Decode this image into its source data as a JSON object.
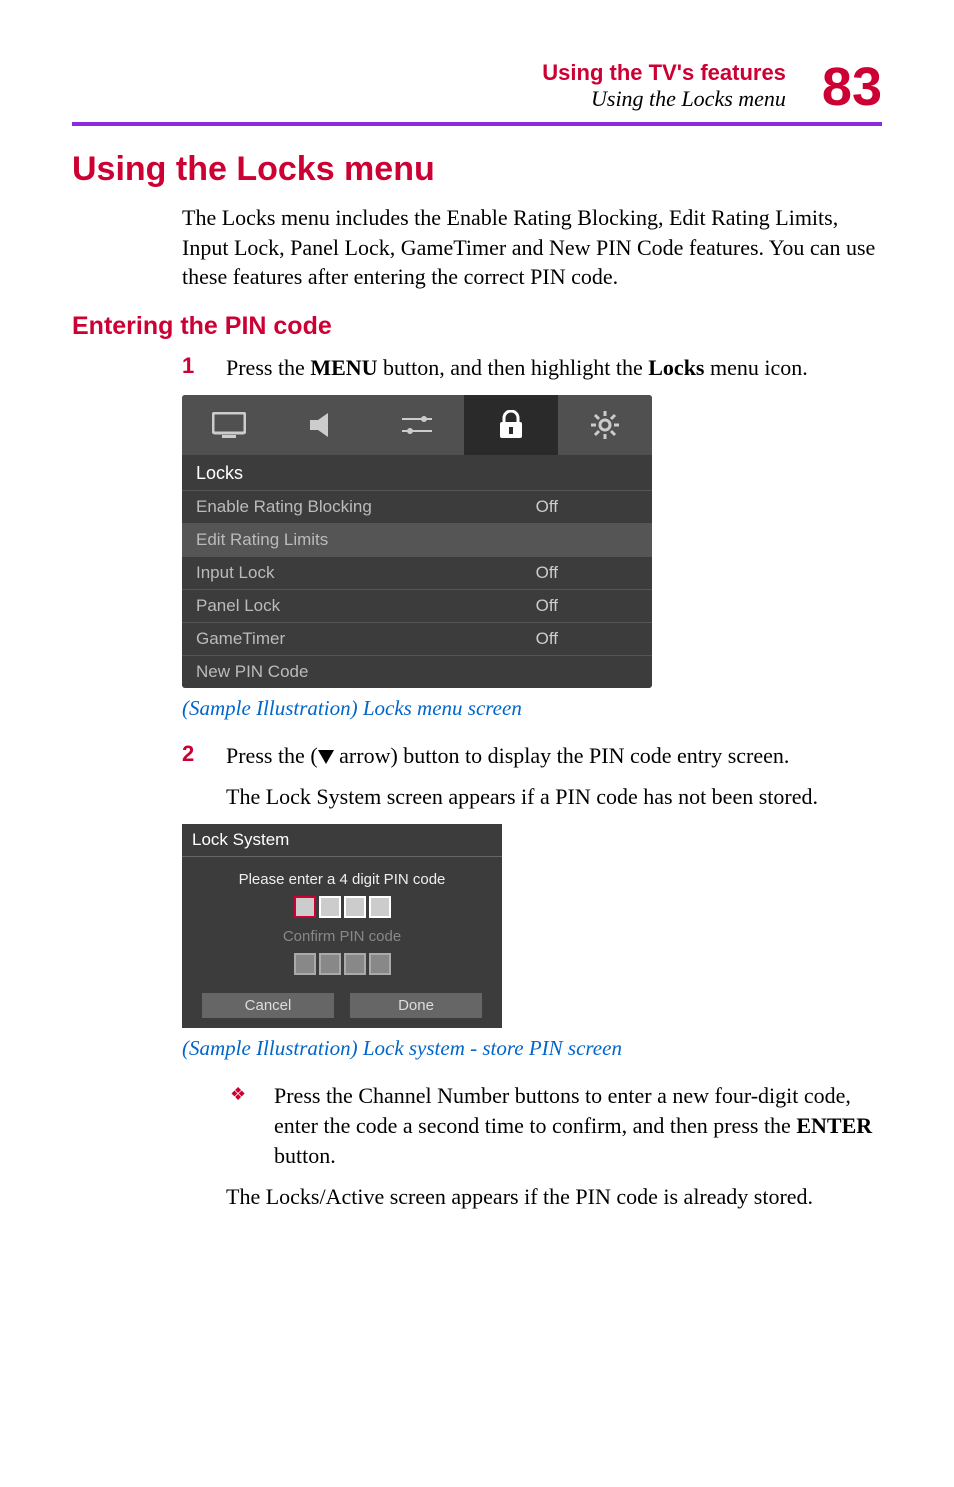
{
  "header": {
    "title": "Using the TV's features",
    "subtitle": "Using the Locks menu",
    "page_num": "83"
  },
  "h1": "Using the Locks menu",
  "intro": "The Locks menu includes the Enable Rating Blocking, Edit Rating Limits, Input Lock, Panel Lock, GameTimer and New PIN Code features. You can use these features after entering the correct PIN code.",
  "h2": "Entering the PIN code",
  "step1": {
    "num": "1",
    "pre": "Press the ",
    "b1": "MENU",
    "mid": " button, and then highlight the ",
    "b2": "Locks",
    "post": " menu icon."
  },
  "locks_menu": {
    "title": "Locks",
    "rows": [
      {
        "label": "Enable Rating Blocking",
        "val": "Off",
        "hl": false
      },
      {
        "label": "Edit Rating Limits",
        "val": "",
        "hl": true
      },
      {
        "label": "Input Lock",
        "val": "Off",
        "hl": false
      },
      {
        "label": "Panel Lock",
        "val": "Off",
        "hl": false
      },
      {
        "label": "GameTimer",
        "val": "Off",
        "hl": false
      },
      {
        "label": "New PIN Code",
        "val": "",
        "hl": false
      }
    ],
    "icon_colors": {
      "normal": "#cccccc",
      "active_bg": "#2a2a2a"
    }
  },
  "caption1": "(Sample Illustration) Locks menu screen",
  "step2": {
    "num": "2",
    "pre": "Press the (",
    "post": " arrow) button to display the PIN code entry screen."
  },
  "step2_cont": "The Lock System screen appears if a PIN code has not been stored.",
  "lock_system": {
    "title": "Lock System",
    "line1": "Please enter a 4 digit PIN code",
    "line2": "Confirm PIN code",
    "btn_cancel": "Cancel",
    "btn_done": "Done"
  },
  "caption2": "(Sample Illustration) Lock system - store PIN screen",
  "bullet": {
    "pre": "Press the Channel Number buttons to enter a new four-digit code, enter the code a second time to confirm, and then press the ",
    "b": "ENTER",
    "post": " button."
  },
  "closing": "The Locks/Active screen appears if the PIN code is already stored.",
  "colors": {
    "red": "#cc0033",
    "purple": "#8a2be2",
    "link": "#0066cc",
    "menu_bg": "#3c3c3c"
  }
}
